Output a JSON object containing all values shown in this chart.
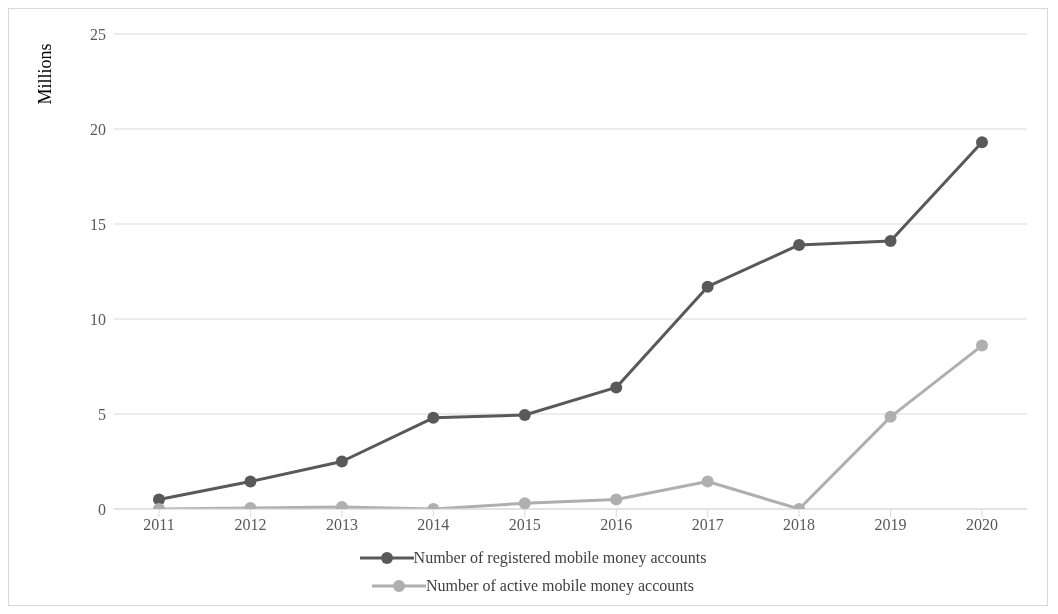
{
  "chart_data": {
    "type": "line",
    "ylabel": "Millions",
    "categories": [
      "2011",
      "2012",
      "2013",
      "2014",
      "2015",
      "2016",
      "2017",
      "2018",
      "2019",
      "2020"
    ],
    "series": [
      {
        "name": "Number of registered mobile money accounts",
        "color": "#595959",
        "values": [
          0.5,
          1.45,
          2.5,
          4.8,
          4.95,
          6.4,
          11.7,
          13.9,
          14.1,
          19.3
        ]
      },
      {
        "name": "Number of active mobile money accounts",
        "color": "#afafaf",
        "values": [
          0,
          0.05,
          0.1,
          0,
          0.3,
          0.5,
          1.45,
          0,
          4.85,
          8.6
        ]
      }
    ],
    "ylim": [
      0,
      25
    ],
    "yticks": [
      0,
      5,
      10,
      15,
      20,
      25
    ],
    "grid": "y",
    "legend": "bottom",
    "marker": "circle",
    "line_style": "solid"
  }
}
